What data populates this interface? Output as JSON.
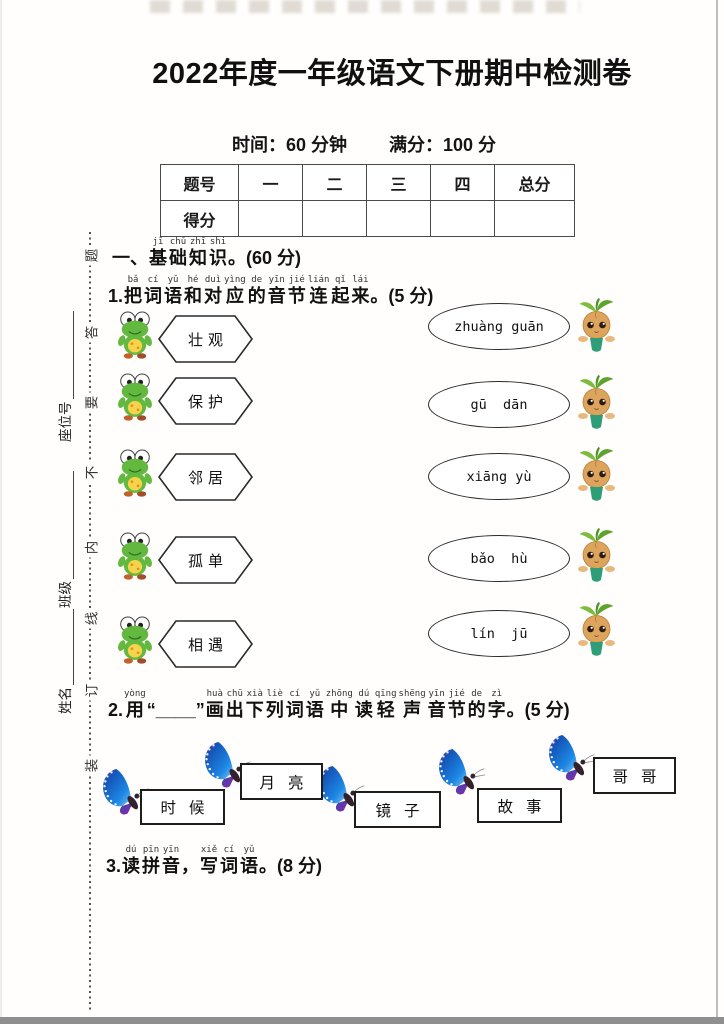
{
  "title": "2022年度一年级语文下册期中检测卷",
  "meta": {
    "time": "时间：60 分钟",
    "full_score": "满分：100 分"
  },
  "score_table": {
    "headers": [
      "题号",
      "一",
      "二",
      "三",
      "四",
      "总分"
    ],
    "row_label": "得分"
  },
  "binding_margin": {
    "chars": [
      "题",
      "答",
      "要",
      "不",
      "内",
      "线",
      "订",
      "装"
    ],
    "seat_label": "座位号",
    "class_label": "班级",
    "name_label": "姓名"
  },
  "section1": {
    "prefix": "一、",
    "ruby": [
      [
        "jī",
        "基"
      ],
      [
        "chǔ",
        "础"
      ],
      [
        "zhī",
        "知"
      ],
      [
        "shi",
        "识"
      ]
    ],
    "suffix": "。(60 分)"
  },
  "q1": {
    "prefix": "1.",
    "ruby": [
      [
        "bǎ",
        "把"
      ],
      [
        "cí",
        "词"
      ],
      [
        "yǔ",
        "语"
      ],
      [
        "hé",
        "和"
      ],
      [
        "duì",
        "对"
      ],
      [
        "yìng",
        "应"
      ],
      [
        "de",
        "的"
      ],
      [
        "yīn",
        "音"
      ],
      [
        "jié",
        "节"
      ],
      [
        "lián",
        "连"
      ],
      [
        "qǐ",
        "起"
      ],
      [
        "lái",
        "来"
      ]
    ],
    "suffix": "。(5 分)",
    "words": [
      "壮观",
      "保护",
      "邻居",
      "孤单",
      "相遇"
    ],
    "pinyins": [
      "zhuàng guān",
      "gū  dān",
      "xiāng yù",
      "bǎo  hù",
      "lín  jū"
    ]
  },
  "q2": {
    "prefix": "2.",
    "ruby_a": [
      [
        "yòng",
        "用"
      ]
    ],
    "blank": "“____”",
    "ruby_b": [
      [
        "huà",
        "画"
      ],
      [
        "chū",
        "出"
      ],
      [
        "xià",
        "下"
      ],
      [
        "liè",
        "列"
      ],
      [
        "cí",
        "词"
      ],
      [
        "yǔ",
        "语"
      ],
      [
        "zhōng",
        "中"
      ],
      [
        "dú",
        "读"
      ],
      [
        "qīng",
        "轻"
      ],
      [
        "shēng",
        "声"
      ],
      [
        "yīn",
        "音"
      ],
      [
        "jié",
        "节"
      ],
      [
        "de",
        "的"
      ],
      [
        "zì",
        "字"
      ]
    ],
    "suffix": "。(5 分)",
    "words": [
      "时候",
      "月亮",
      "镜子",
      "故事",
      "哥哥"
    ]
  },
  "q3": {
    "prefix": "3.",
    "ruby_a": [
      [
        "dú",
        "读"
      ],
      [
        "pīn",
        "拼"
      ],
      [
        "yīn",
        "音"
      ]
    ],
    "comma": "，",
    "ruby_b": [
      [
        "xiě",
        "写"
      ],
      [
        "cí",
        "词"
      ],
      [
        "yǔ",
        "语"
      ]
    ],
    "suffix": "。(8 分)"
  }
}
